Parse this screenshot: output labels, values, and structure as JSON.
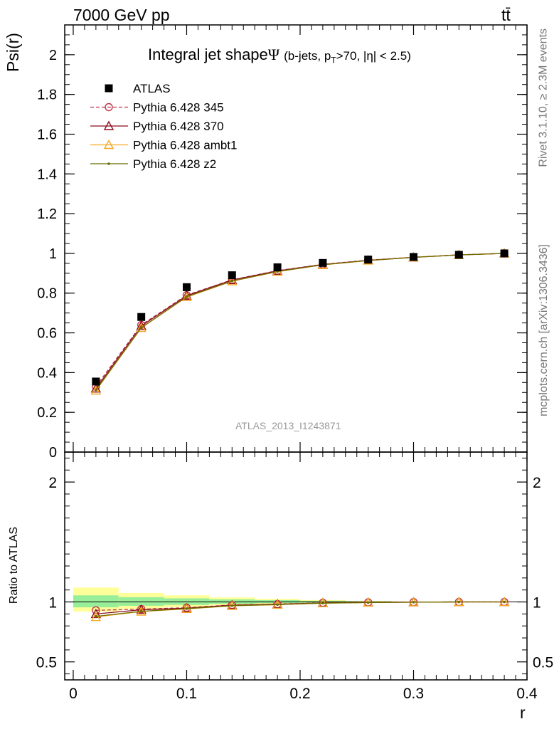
{
  "header": {
    "energy_label": "7000 GeV pp",
    "process_label": "tt̄"
  },
  "side_labels": {
    "rivet": "Rivet 3.1.10, ≥ 2.3M events",
    "mcplots": "mcplots.cern.ch [arXiv:1306.3436]"
  },
  "chart_data": {
    "type": "line",
    "title": "Integral jet shape",
    "title_symbol": "Ψ",
    "subtitle_pre": "(b-jets, p",
    "subtitle_sub": "T",
    "subtitle_post": ">70, |η| < 2.5)",
    "ylabel": "Psi(r)",
    "xlabel": "r",
    "ratio_ylabel": "Ratio to ATLAS",
    "analysis_id": "ATLAS_2013_I1243871",
    "xlim": [
      -0.0075,
      0.4
    ],
    "ylim": [
      0,
      2.15
    ],
    "ratio_ylim": [
      0.35,
      2.25
    ],
    "main_yticks": [
      0,
      0.2,
      0.4,
      0.6,
      0.8,
      1,
      1.2,
      1.4,
      1.6,
      1.8,
      2
    ],
    "main_ytick_labels": [
      "0",
      "0.2",
      "0.4",
      "0.6",
      "0.8",
      "1",
      "1.2",
      "1.4",
      "1.6",
      "1.8",
      "2"
    ],
    "ratio_yticks": [
      0.5,
      1,
      2
    ],
    "ratio_ytick_labels": [
      "0.5",
      "1",
      "2"
    ],
    "xticks": [
      0,
      0.1,
      0.2,
      0.3,
      0.4
    ],
    "xtick_labels": [
      "0",
      "0.1",
      "0.2",
      "0.3",
      "0.4"
    ],
    "x": [
      0.02,
      0.06,
      0.1,
      0.14,
      0.18,
      0.22,
      0.26,
      0.3,
      0.34,
      0.38
    ],
    "data": {
      "name": "ATLAS",
      "values": [
        0.355,
        0.68,
        0.83,
        0.89,
        0.93,
        0.952,
        0.969,
        0.982,
        0.993,
        1.0
      ],
      "band_edges": [
        0.0,
        0.04,
        0.08,
        0.12,
        0.16,
        0.2,
        0.24,
        0.28
      ],
      "band_inner": [
        [
          0.955,
          1.055
        ],
        [
          0.968,
          1.04
        ],
        [
          0.975,
          1.03
        ],
        [
          0.984,
          1.022
        ],
        [
          0.99,
          1.015
        ],
        [
          0.994,
          1.01
        ],
        [
          0.997,
          1.006
        ]
      ],
      "band_outer": [
        [
          0.92,
          1.12
        ],
        [
          0.94,
          1.075
        ],
        [
          0.955,
          1.055
        ],
        [
          0.972,
          1.038
        ],
        [
          0.982,
          1.026
        ],
        [
          0.99,
          1.016
        ],
        [
          0.995,
          1.009
        ]
      ]
    },
    "series": [
      {
        "name": "Pythia 6.428 345",
        "color": "#c0334a",
        "dash": true,
        "marker": "circle",
        "values": [
          0.33,
          0.64,
          0.79,
          0.867,
          0.913,
          0.945,
          0.966,
          0.981,
          0.993,
          1.0
        ],
        "ratio": [
          0.93,
          0.94,
          0.952,
          0.975,
          0.982,
          0.993,
          0.997,
          0.999,
          1.0,
          1.0
        ]
      },
      {
        "name": "Pythia 6.428 370",
        "color": "#8b0d1f",
        "dash": false,
        "marker": "triangle",
        "values": [
          0.32,
          0.635,
          0.787,
          0.866,
          0.912,
          0.944,
          0.965,
          0.98,
          0.992,
          1.0
        ],
        "ratio": [
          0.9,
          0.935,
          0.948,
          0.973,
          0.981,
          0.992,
          0.996,
          0.998,
          1.0,
          1.0
        ]
      },
      {
        "name": "Pythia 6.428 ambt1",
        "color": "#f5a623",
        "dash": false,
        "marker": "triangle",
        "values": [
          0.31,
          0.625,
          0.78,
          0.86,
          0.908,
          0.942,
          0.964,
          0.98,
          0.992,
          1.0
        ],
        "ratio": [
          0.875,
          0.92,
          0.942,
          0.968,
          0.977,
          0.99,
          0.995,
          0.998,
          1.0,
          1.0
        ]
      },
      {
        "name": "Pythia 6.428 z2",
        "color": "#6b6b00",
        "dash": false,
        "marker": "dot",
        "values": [
          0.312,
          0.626,
          0.782,
          0.861,
          0.909,
          0.943,
          0.964,
          0.98,
          0.992,
          1.0
        ],
        "ratio": [
          0.88,
          0.922,
          0.944,
          0.969,
          0.978,
          0.99,
          0.995,
          0.998,
          1.0,
          1.0
        ]
      }
    ]
  }
}
